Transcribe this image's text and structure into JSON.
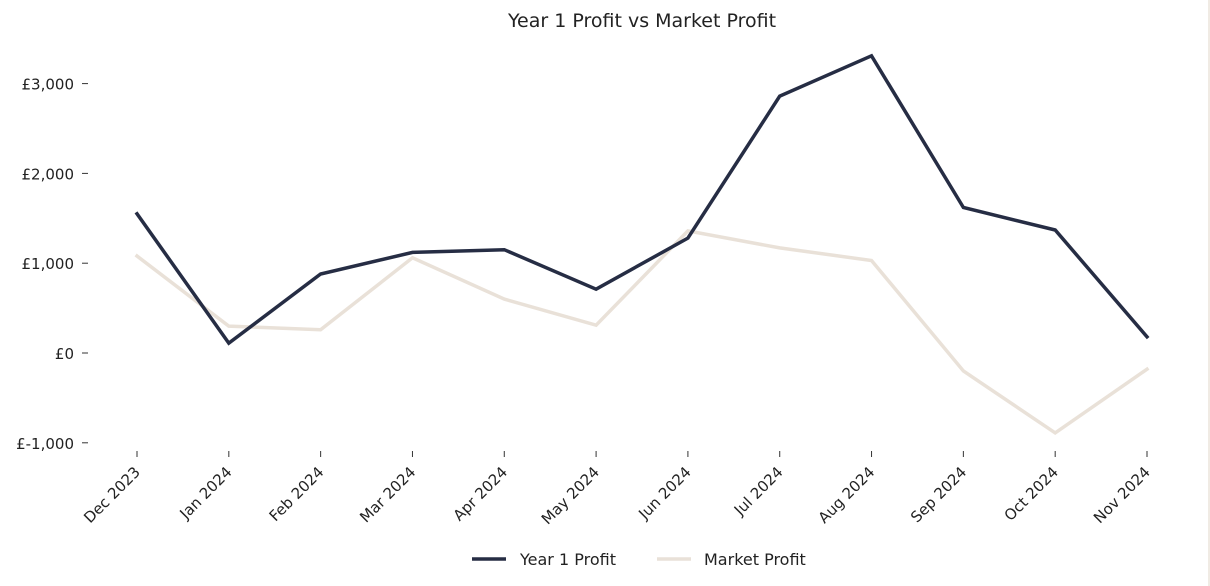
{
  "chart_data": {
    "type": "line",
    "title": "Year 1 Profit vs Market Profit",
    "xlabel": "",
    "ylabel": "",
    "categories": [
      "Dec 2023",
      "Jan 2024",
      "Feb 2024",
      "Mar 2024",
      "Apr 2024",
      "May 2024",
      "Jun 2024",
      "Jul 2024",
      "Aug 2024",
      "Sep 2024",
      "Oct 2024",
      "Nov 2024"
    ],
    "series": [
      {
        "name": "Year 1 Profit",
        "color": "#262d44",
        "values": [
          1550,
          110,
          880,
          1120,
          1150,
          710,
          1280,
          2860,
          3310,
          1620,
          1370,
          180
        ]
      },
      {
        "name": "Market Profit",
        "color": "#e9e1d8",
        "values": [
          1080,
          300,
          260,
          1060,
          600,
          310,
          1360,
          1170,
          1030,
          -200,
          -890,
          -180
        ]
      }
    ],
    "ylim": [
      -1150,
      3450
    ],
    "yticks": [
      -1000,
      0,
      1000,
      2000,
      3000
    ],
    "ytick_labels": [
      "£-1,000",
      "£0",
      "£1,000",
      "£2,000",
      "£3,000"
    ],
    "grid": false,
    "legend": "bottom-center"
  }
}
